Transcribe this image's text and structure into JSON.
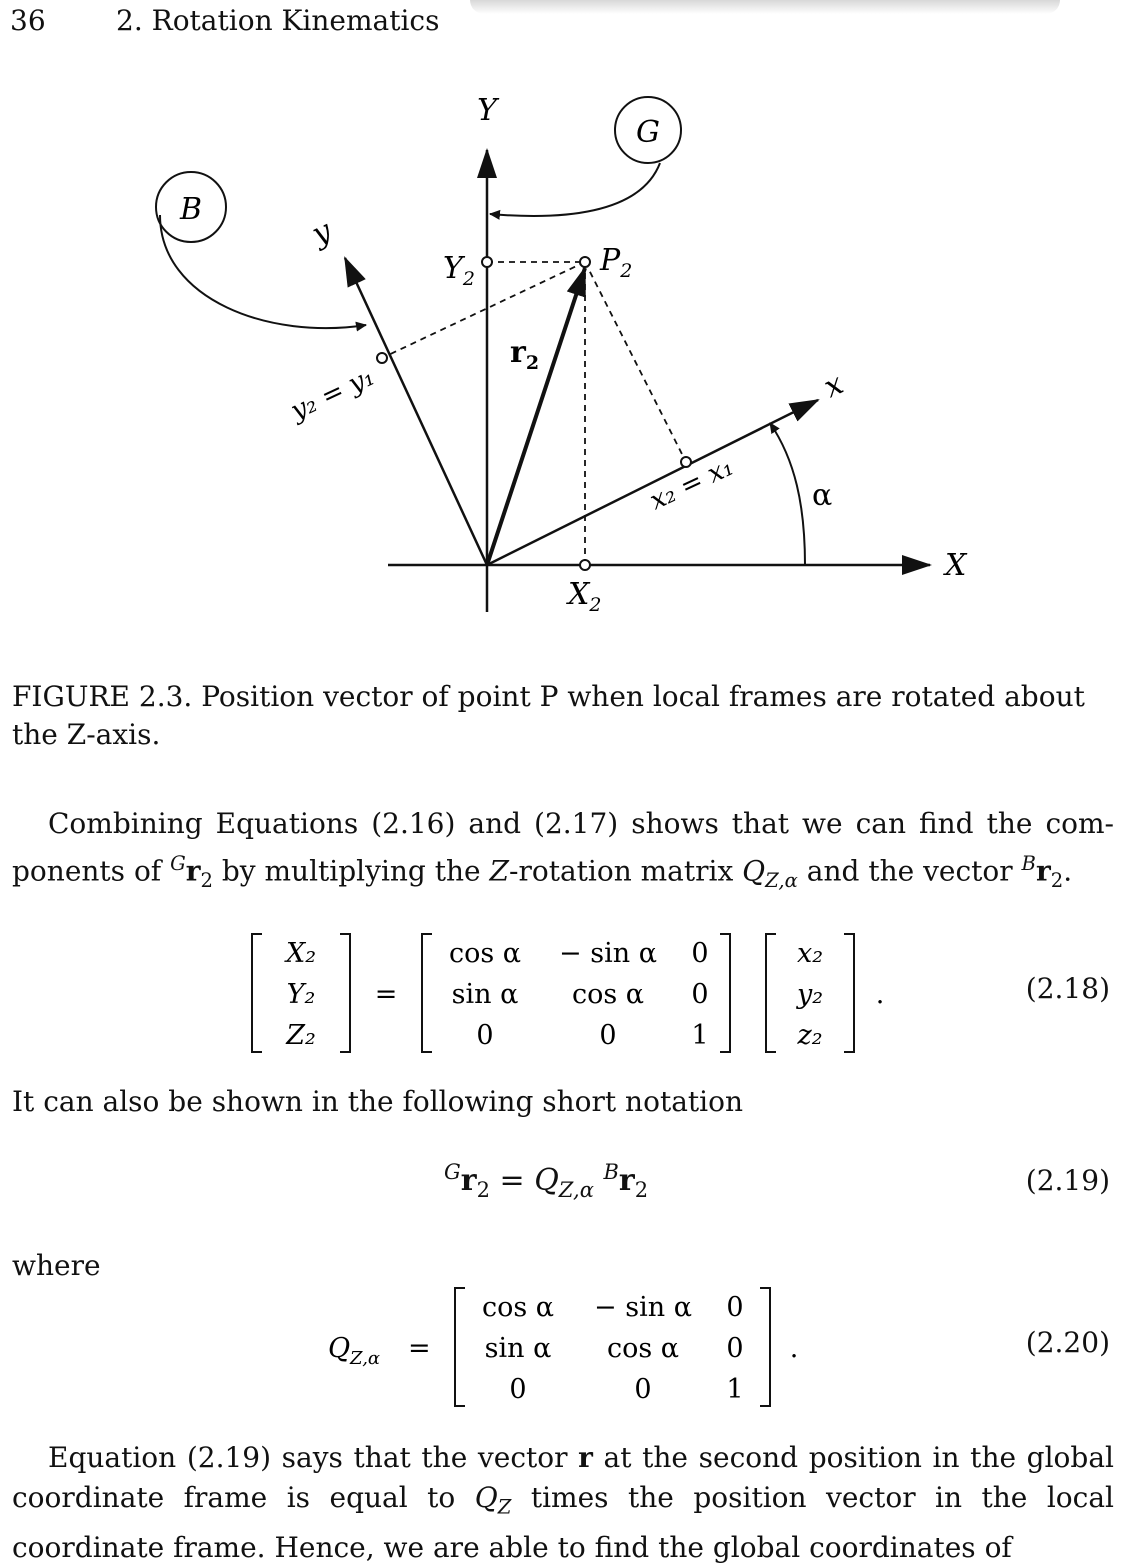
{
  "header": {
    "page_number": "36",
    "chapter_title": "2. Rotation Kinematics"
  },
  "figure": {
    "label_Y": "Y",
    "label_X": "X",
    "label_y": "y",
    "label_x": "x",
    "label_G": "G",
    "label_B": "B",
    "label_P2": "P",
    "label_P2_sub": "2",
    "label_Y2": "Y",
    "label_Y2_sub": "2",
    "label_X2": "X",
    "label_X2_sub": "2",
    "label_r2": "r",
    "label_r2_sub": "2",
    "label_y2y1": "y₂ = y₁",
    "label_x2x1": "x₂ = x₁",
    "label_alpha": "α",
    "caption": "FIGURE 2.3. Position vector of point P when local frames are rotated about the Z-axis."
  },
  "text": {
    "p1_a": "Combining Equations (2.16) and (2.17) shows that we can find the com-ponents of ",
    "p1_b": " by multiplying the ",
    "p1_c": "-rotation matrix ",
    "p1_d": " and the vector ",
    "p2": "It can also be shown in the following short notation",
    "where": "where",
    "p3_a": "Equation (2.19) says that the vector ",
    "p3_b": " at the second position in the global coordinate frame is equal to ",
    "p3_c": " times the position vector in the local coordinate frame. Hence, we are able to find the global coordinates of"
  },
  "equations": {
    "eq218": {
      "number": "(2.18)",
      "lhs": [
        "X₂",
        "Y₂",
        "Z₂"
      ],
      "matrix": [
        [
          "cos α",
          "− sin α",
          "0"
        ],
        [
          "sin α",
          "cos α",
          "0"
        ],
        [
          "0",
          "0",
          "1"
        ]
      ],
      "rhs": [
        "x₂",
        "y₂",
        "z₂"
      ]
    },
    "eq219": {
      "number": "(2.19)"
    },
    "eq220": {
      "number": "(2.20)",
      "matrix": [
        [
          "cos α",
          "− sin α",
          "0"
        ],
        [
          "sin α",
          "cos α",
          "0"
        ],
        [
          "0",
          "0",
          "1"
        ]
      ]
    }
  }
}
